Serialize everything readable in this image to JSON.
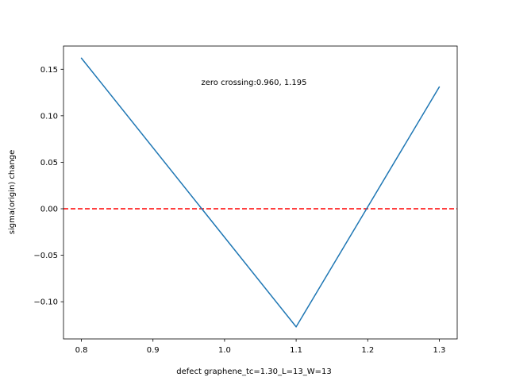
{
  "chart_data": {
    "type": "line",
    "xlabel": "defect graphene_tc=1.30_L=13_W=13",
    "ylabel": "sigma(origin) change",
    "annotation": "zero crossing:0.960, 1.195",
    "xlim": [
      0.775,
      1.325
    ],
    "ylim": [
      -0.14,
      0.175
    ],
    "x_ticks": [
      {
        "value": 0.8,
        "label": "0.8"
      },
      {
        "value": 0.9,
        "label": "0.9"
      },
      {
        "value": 1.0,
        "label": "1.0"
      },
      {
        "value": 1.1,
        "label": "1.1"
      },
      {
        "value": 1.2,
        "label": "1.2"
      },
      {
        "value": 1.3,
        "label": "1.3"
      }
    ],
    "y_ticks": [
      {
        "value": -0.1,
        "label": "−0.10"
      },
      {
        "value": -0.05,
        "label": "−0.05"
      },
      {
        "value": 0.0,
        "label": "0.00"
      },
      {
        "value": 0.05,
        "label": "0.05"
      },
      {
        "value": 0.1,
        "label": "0.10"
      },
      {
        "value": 0.15,
        "label": "0.15"
      }
    ],
    "series": [
      {
        "x": [
          0.8,
          1.1,
          1.3
        ],
        "y": [
          0.162,
          -0.127,
          0.131
        ],
        "color": "#1f77b4"
      }
    ],
    "reference_line": {
      "y": 0.0,
      "color": "#ff0000",
      "style": "dashed"
    },
    "label_color": "#0000ff",
    "grid": false
  }
}
